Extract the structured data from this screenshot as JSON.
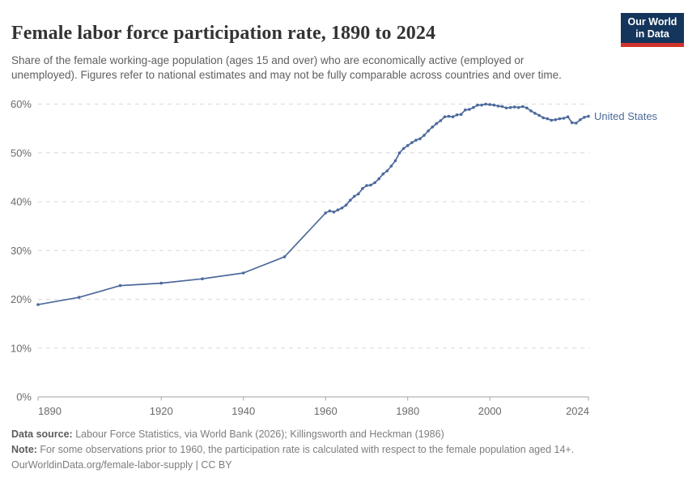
{
  "header": {
    "title": "Female labor force participation rate, 1890 to 2024",
    "subtitle": "Share of the female working-age population (ages 15 and over) who are economically active (employed or unemployed). Figures refer to national estimates and may not be fully comparable across countries and over time.",
    "logo": {
      "line1": "Our World",
      "line2": "in Data",
      "bg_color": "#14355C",
      "accent_color": "#D0342C"
    }
  },
  "chart_data": {
    "type": "line",
    "title": "Female labor force participation rate, 1890 to 2024",
    "xlabel": "",
    "ylabel": "",
    "xlim": [
      1890,
      2024
    ],
    "ylim": [
      0,
      60
    ],
    "x_ticks": [
      1890,
      1920,
      1940,
      1960,
      1980,
      2000,
      2024
    ],
    "y_ticks": [
      0,
      10,
      20,
      30,
      40,
      50,
      60
    ],
    "y_unit": "%",
    "grid": "horizontal-dashed",
    "legend_position": "end-of-line-label",
    "series": [
      {
        "name": "United States",
        "color": "#4C6A9C",
        "points": [
          [
            1890,
            18.9
          ],
          [
            1900,
            20.4
          ],
          [
            1910,
            22.8
          ],
          [
            1920,
            23.3
          ],
          [
            1930,
            24.2
          ],
          [
            1940,
            25.4
          ],
          [
            1950,
            28.7
          ],
          [
            1960,
            37.7
          ],
          [
            1961,
            38.1
          ],
          [
            1962,
            37.9
          ],
          [
            1963,
            38.3
          ],
          [
            1964,
            38.7
          ],
          [
            1965,
            39.3
          ],
          [
            1966,
            40.3
          ],
          [
            1967,
            41.1
          ],
          [
            1968,
            41.6
          ],
          [
            1969,
            42.7
          ],
          [
            1970,
            43.3
          ],
          [
            1971,
            43.4
          ],
          [
            1972,
            43.9
          ],
          [
            1973,
            44.7
          ],
          [
            1974,
            45.7
          ],
          [
            1975,
            46.3
          ],
          [
            1976,
            47.3
          ],
          [
            1977,
            48.4
          ],
          [
            1978,
            50.0
          ],
          [
            1979,
            50.9
          ],
          [
            1980,
            51.5
          ],
          [
            1981,
            52.1
          ],
          [
            1982,
            52.6
          ],
          [
            1983,
            52.9
          ],
          [
            1984,
            53.6
          ],
          [
            1985,
            54.5
          ],
          [
            1986,
            55.3
          ],
          [
            1987,
            56.0
          ],
          [
            1988,
            56.6
          ],
          [
            1989,
            57.4
          ],
          [
            1990,
            57.5
          ],
          [
            1991,
            57.4
          ],
          [
            1992,
            57.8
          ],
          [
            1993,
            57.9
          ],
          [
            1994,
            58.8
          ],
          [
            1995,
            58.9
          ],
          [
            1996,
            59.3
          ],
          [
            1997,
            59.8
          ],
          [
            1998,
            59.8
          ],
          [
            1999,
            60.0
          ],
          [
            2000,
            59.9
          ],
          [
            2001,
            59.8
          ],
          [
            2002,
            59.6
          ],
          [
            2003,
            59.5
          ],
          [
            2004,
            59.2
          ],
          [
            2005,
            59.3
          ],
          [
            2006,
            59.4
          ],
          [
            2007,
            59.3
          ],
          [
            2008,
            59.5
          ],
          [
            2009,
            59.2
          ],
          [
            2010,
            58.6
          ],
          [
            2011,
            58.1
          ],
          [
            2012,
            57.7
          ],
          [
            2013,
            57.2
          ],
          [
            2014,
            57.0
          ],
          [
            2015,
            56.7
          ],
          [
            2016,
            56.8
          ],
          [
            2017,
            57.0
          ],
          [
            2018,
            57.1
          ],
          [
            2019,
            57.4
          ],
          [
            2020,
            56.2
          ],
          [
            2021,
            56.1
          ],
          [
            2022,
            56.8
          ],
          [
            2023,
            57.3
          ],
          [
            2024,
            57.5
          ]
        ]
      }
    ]
  },
  "footer": {
    "source_label": "Data source:",
    "source_text": " Labour Force Statistics, via World Bank (2026); Killingsworth and Heckman (1986)",
    "note_label": "Note:",
    "note_text": " For some observations prior to 1960, the participation rate is calculated with respect to the female population aged 14+.",
    "url_line": "OurWorldinData.org/female-labor-supply | CC BY"
  }
}
